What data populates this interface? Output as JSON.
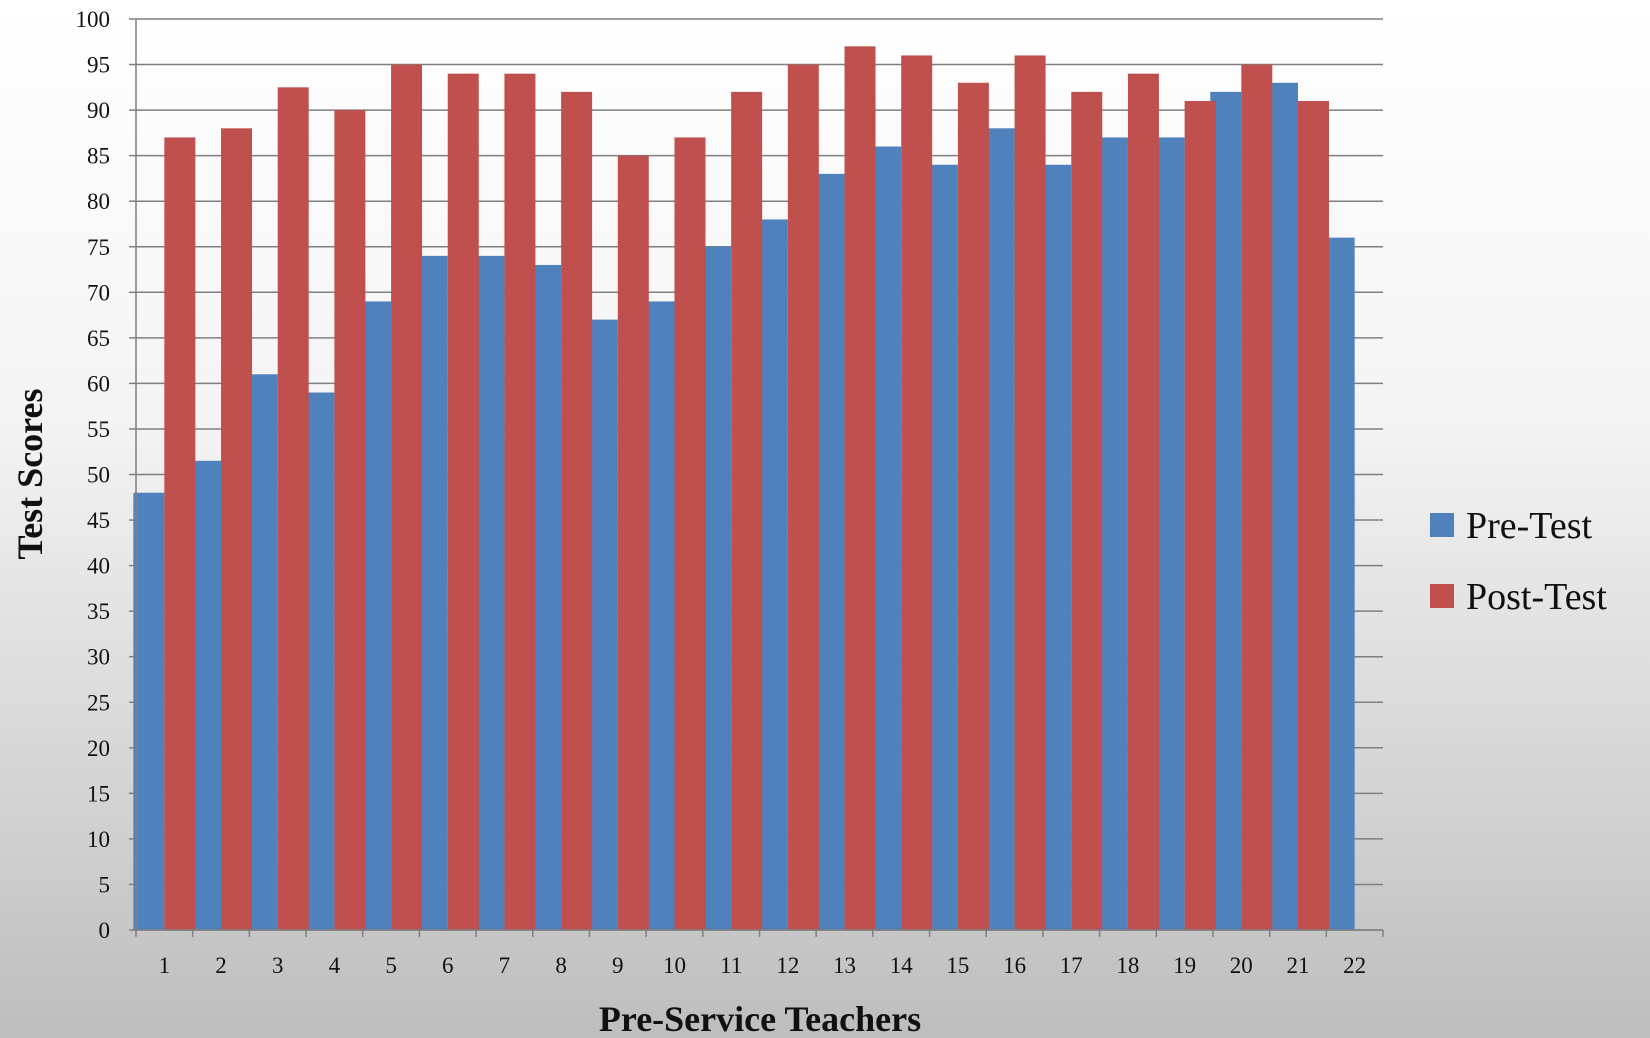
{
  "chart_data": {
    "type": "bar",
    "xlabel": "Pre-Service Teachers",
    "ylabel": "Test Scores",
    "ylim": [
      0,
      100
    ],
    "ytick_step": 5,
    "grid": true,
    "legend_position": "right",
    "categories": [
      "1",
      "2",
      "3",
      "4",
      "5",
      "6",
      "7",
      "8",
      "9",
      "10",
      "11",
      "12",
      "13",
      "14",
      "15",
      "16",
      "17",
      "18",
      "19",
      "20",
      "21",
      "22"
    ],
    "series": [
      {
        "name": "Pre-Test",
        "color": "#4f81bd",
        "values": [
          48,
          51.5,
          61,
          59,
          69,
          74,
          74,
          73,
          67,
          69,
          75,
          78,
          83,
          86,
          84,
          88,
          84,
          87,
          87,
          92,
          93,
          76
        ]
      },
      {
        "name": "Post-Test",
        "color": "#c0504d",
        "values": [
          87,
          88,
          92.5,
          90,
          95,
          94,
          94,
          92,
          85,
          87,
          92,
          95,
          97,
          96,
          93,
          96,
          92,
          94,
          91,
          95,
          91,
          null
        ]
      }
    ]
  }
}
